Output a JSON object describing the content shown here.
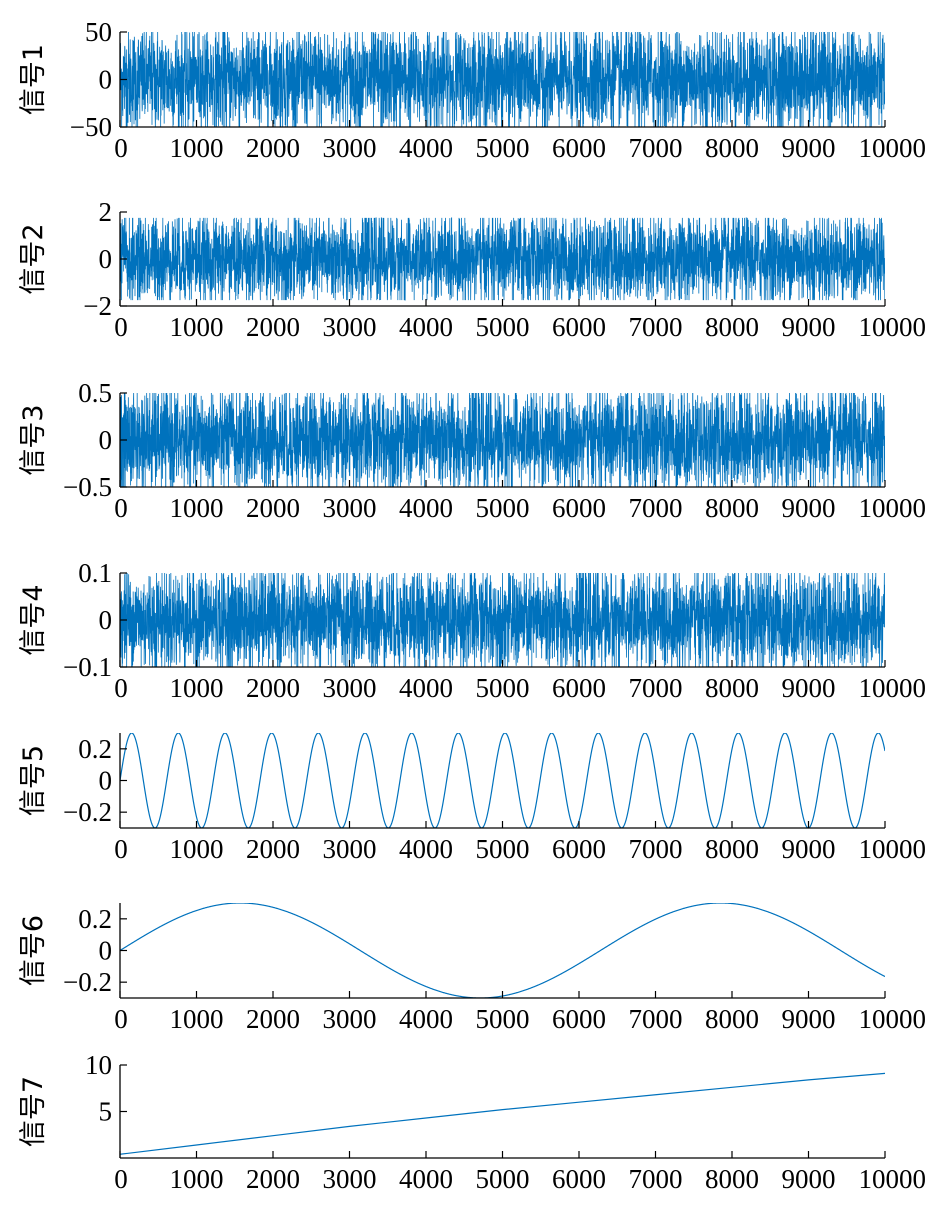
{
  "colors": {
    "line": "#0072BD",
    "axis": "#000000"
  },
  "chart_data": [
    {
      "type": "line",
      "ylabel": "信号1",
      "xlim": [
        0,
        10000
      ],
      "ylim": [
        -50,
        50
      ],
      "xticks": [
        "0",
        "1000",
        "2000",
        "3000",
        "4000",
        "5000",
        "6000",
        "7000",
        "8000",
        "9000",
        "10000"
      ],
      "yticks": [
        {
          "v": 50,
          "label": "50"
        },
        {
          "v": 0,
          "label": "0"
        },
        {
          "v": -50,
          "label": "−50"
        }
      ],
      "series": [
        {
          "kind": "noise",
          "amplitude": 50,
          "n": 10000
        }
      ]
    },
    {
      "type": "line",
      "ylabel": "信号2",
      "xlim": [
        0,
        10000
      ],
      "ylim": [
        -2,
        2
      ],
      "xticks": [
        "0",
        "1000",
        "2000",
        "3000",
        "4000",
        "5000",
        "6000",
        "7000",
        "8000",
        "9000",
        "10000"
      ],
      "yticks": [
        {
          "v": 2,
          "label": "2"
        },
        {
          "v": 0,
          "label": "0"
        },
        {
          "v": -2,
          "label": "−2"
        }
      ],
      "series": [
        {
          "kind": "noise",
          "amplitude": 1.75,
          "n": 10000
        }
      ]
    },
    {
      "type": "line",
      "ylabel": "信号3",
      "xlim": [
        0,
        10000
      ],
      "ylim": [
        -0.5,
        0.5
      ],
      "xticks": [
        "0",
        "1000",
        "2000",
        "3000",
        "4000",
        "5000",
        "6000",
        "7000",
        "8000",
        "9000",
        "10000"
      ],
      "yticks": [
        {
          "v": 0.5,
          "label": "0.5"
        },
        {
          "v": 0,
          "label": "0"
        },
        {
          "v": -0.5,
          "label": "−0.5"
        }
      ],
      "series": [
        {
          "kind": "noise",
          "amplitude": 0.5,
          "n": 10000
        }
      ]
    },
    {
      "type": "line",
      "ylabel": "信号4",
      "xlim": [
        0,
        10000
      ],
      "ylim": [
        -0.1,
        0.1
      ],
      "xticks": [
        "0",
        "1000",
        "2000",
        "3000",
        "4000",
        "5000",
        "6000",
        "7000",
        "8000",
        "9000",
        "10000"
      ],
      "yticks": [
        {
          "v": 0.1,
          "label": "0.1"
        },
        {
          "v": 0,
          "label": "0"
        },
        {
          "v": -0.1,
          "label": "−0.1"
        }
      ],
      "series": [
        {
          "kind": "noise",
          "amplitude": 0.1,
          "n": 10000
        }
      ]
    },
    {
      "type": "line",
      "ylabel": "信号5",
      "xlim": [
        0,
        10000
      ],
      "ylim": [
        -0.3,
        0.3
      ],
      "xticks": [
        "0",
        "1000",
        "2000",
        "3000",
        "4000",
        "5000",
        "6000",
        "7000",
        "8000",
        "9000",
        "10000"
      ],
      "yticks": [
        {
          "v": 0.2,
          "label": "0.2"
        },
        {
          "v": 0,
          "label": "0"
        },
        {
          "v": -0.2,
          "label": "−0.2"
        }
      ],
      "series": [
        {
          "kind": "sine",
          "amplitude": 0.3,
          "period": 610,
          "phase": 0
        }
      ]
    },
    {
      "type": "line",
      "ylabel": "信号6",
      "xlim": [
        0,
        10000
      ],
      "ylim": [
        -0.3,
        0.3
      ],
      "xticks": [
        "0",
        "1000",
        "2000",
        "3000",
        "4000",
        "5000",
        "6000",
        "7000",
        "8000",
        "9000",
        "10000"
      ],
      "yticks": [
        {
          "v": 0.2,
          "label": "0.2"
        },
        {
          "v": 0,
          "label": "0"
        },
        {
          "v": -0.2,
          "label": "−0.2"
        }
      ],
      "series": [
        {
          "kind": "sine",
          "amplitude": 0.3,
          "period": 6280,
          "phase": 0
        }
      ]
    },
    {
      "type": "line",
      "ylabel": "信号7",
      "xlim": [
        0,
        10000
      ],
      "ylim": [
        0,
        10
      ],
      "xticks": [
        "0",
        "1000",
        "2000",
        "3000",
        "4000",
        "5000",
        "6000",
        "7000",
        "8000",
        "9000",
        "10000"
      ],
      "yticks": [
        {
          "v": 10,
          "label": "10"
        },
        {
          "v": 5,
          "label": "5"
        }
      ],
      "series": [
        {
          "kind": "curve",
          "x": [
            0,
            1000,
            2000,
            3000,
            4000,
            5000,
            6000,
            7000,
            8000,
            9000,
            10000
          ],
          "y": [
            0.4,
            1.4,
            2.4,
            3.4,
            4.3,
            5.2,
            6.0,
            6.8,
            7.6,
            8.4,
            9.1
          ]
        }
      ]
    }
  ]
}
